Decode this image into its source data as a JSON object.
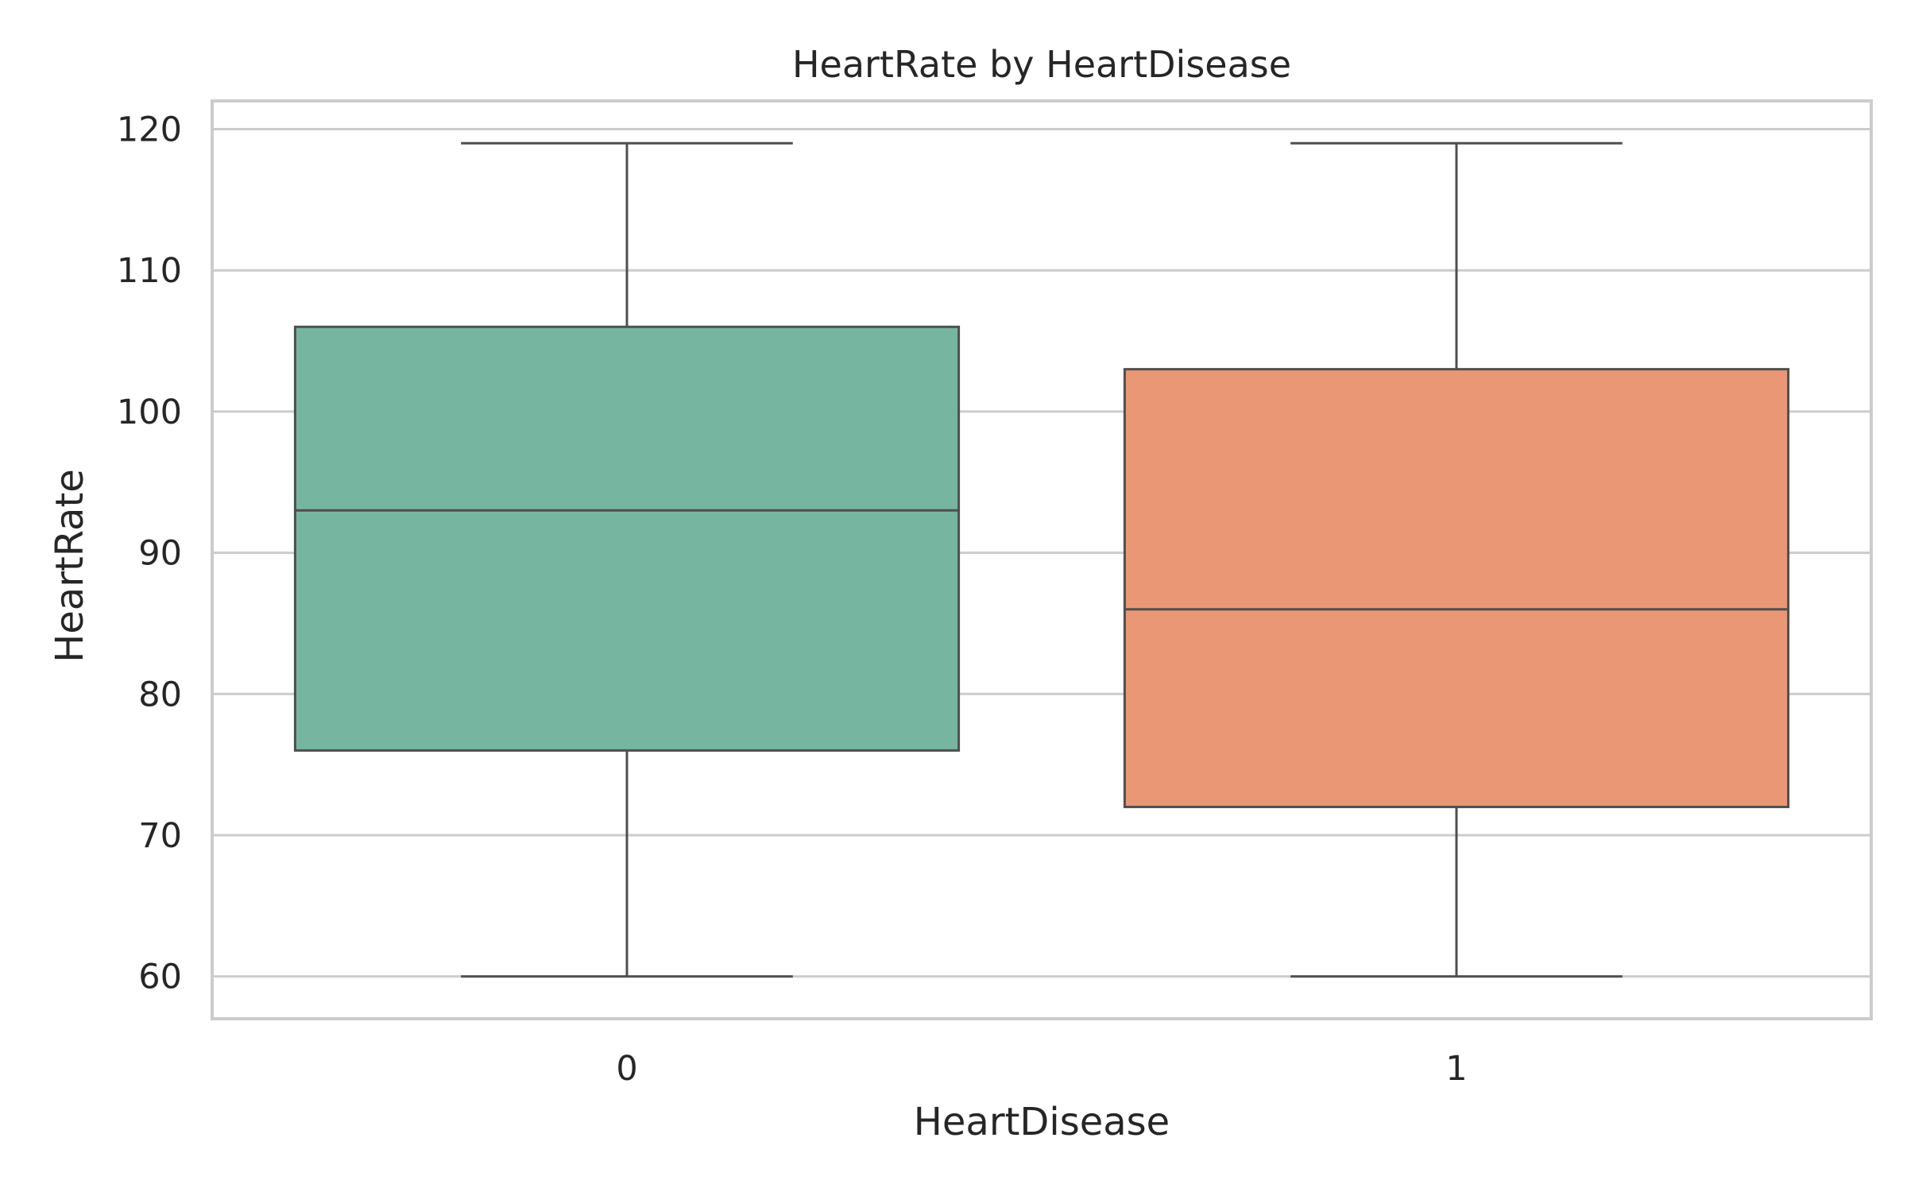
{
  "chart_data": {
    "type": "box",
    "title": "HeartRate by HeartDisease",
    "xlabel": "HeartDisease",
    "ylabel": "HeartRate",
    "ylim": [
      57,
      122
    ],
    "yticks": [
      60,
      70,
      80,
      90,
      100,
      110,
      120
    ],
    "grid": true,
    "categories": [
      "0",
      "1"
    ],
    "boxes": [
      {
        "category": "0",
        "whisker_low": 60,
        "q1": 76,
        "median": 93,
        "q3": 106,
        "whisker_high": 119,
        "color": "#76b6a0"
      },
      {
        "category": "1",
        "whisker_low": 60,
        "q1": 72,
        "median": 86,
        "q3": 103,
        "whisker_high": 119,
        "color": "#e99774"
      }
    ]
  }
}
